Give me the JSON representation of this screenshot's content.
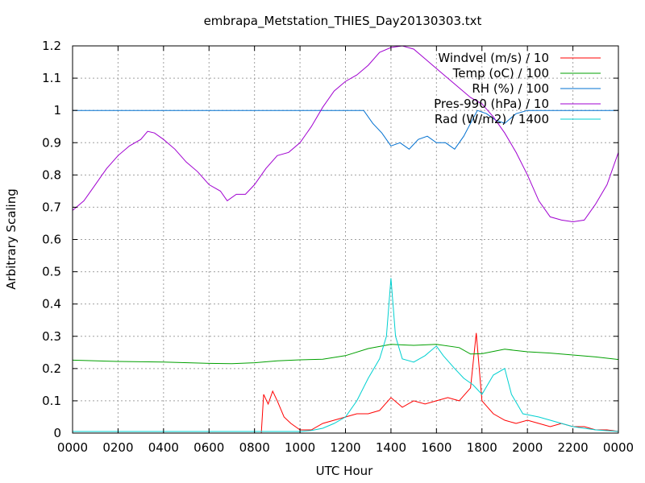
{
  "chart_data": {
    "type": "line",
    "title": "embrapa_Metstation_THIES_Day20130303.txt",
    "xlabel": "UTC Hour",
    "ylabel": "Arbitrary Scaling",
    "xlim": [
      0,
      24
    ],
    "ylim": [
      0,
      1.2
    ],
    "grid": true,
    "legend_position": "top-right",
    "x_ticks": [
      0,
      2,
      4,
      6,
      8,
      10,
      12,
      14,
      16,
      18,
      20,
      22,
      24
    ],
    "x_tick_labels": [
      "0000",
      "0200",
      "0400",
      "0600",
      "0800",
      "1000",
      "1200",
      "1400",
      "1600",
      "1800",
      "2000",
      "2200",
      "0000"
    ],
    "y_ticks": [
      0,
      0.1,
      0.2,
      0.3,
      0.4,
      0.5,
      0.6,
      0.7,
      0.8,
      0.9,
      1,
      1.1,
      1.2
    ],
    "y_tick_labels": [
      "0",
      "0.1",
      "0.2",
      "0.3",
      "0.4",
      "0.5",
      "0.6",
      "0.7",
      "0.8",
      "0.9",
      "1",
      "1.1",
      "1.2"
    ],
    "series": [
      {
        "name": "Windvel (m/s) / 10",
        "color": "#ff0000",
        "points": [
          [
            0,
            0
          ],
          [
            8.3,
            0
          ],
          [
            8.4,
            0.12
          ],
          [
            8.6,
            0.09
          ],
          [
            8.8,
            0.13
          ],
          [
            9.0,
            0.1
          ],
          [
            9.3,
            0.05
          ],
          [
            9.6,
            0.03
          ],
          [
            10.0,
            0.01
          ],
          [
            10.5,
            0.01
          ],
          [
            11.0,
            0.03
          ],
          [
            11.5,
            0.04
          ],
          [
            12.0,
            0.05
          ],
          [
            12.5,
            0.06
          ],
          [
            13.0,
            0.06
          ],
          [
            13.5,
            0.07
          ],
          [
            14.0,
            0.11
          ],
          [
            14.5,
            0.08
          ],
          [
            15.0,
            0.1
          ],
          [
            15.5,
            0.09
          ],
          [
            16.0,
            0.1
          ],
          [
            16.5,
            0.11
          ],
          [
            17.0,
            0.1
          ],
          [
            17.5,
            0.14
          ],
          [
            17.75,
            0.31
          ],
          [
            18.0,
            0.1
          ],
          [
            18.5,
            0.06
          ],
          [
            19.0,
            0.04
          ],
          [
            19.5,
            0.03
          ],
          [
            20.0,
            0.04
          ],
          [
            20.5,
            0.03
          ],
          [
            21.0,
            0.02
          ],
          [
            21.5,
            0.03
          ],
          [
            22.0,
            0.02
          ],
          [
            22.5,
            0.02
          ],
          [
            23.0,
            0.01
          ],
          [
            23.5,
            0.01
          ],
          [
            24,
            0.005
          ]
        ]
      },
      {
        "name": "Temp (oC) / 100",
        "color": "#00a000",
        "points": [
          [
            0,
            0.226
          ],
          [
            2,
            0.222
          ],
          [
            4,
            0.22
          ],
          [
            6,
            0.216
          ],
          [
            7,
            0.215
          ],
          [
            8,
            0.218
          ],
          [
            9,
            0.224
          ],
          [
            10,
            0.227
          ],
          [
            11,
            0.229
          ],
          [
            12,
            0.24
          ],
          [
            13,
            0.262
          ],
          [
            14,
            0.275
          ],
          [
            15,
            0.272
          ],
          [
            16,
            0.275
          ],
          [
            17,
            0.265
          ],
          [
            17.5,
            0.245
          ],
          [
            18,
            0.246
          ],
          [
            19,
            0.26
          ],
          [
            20,
            0.252
          ],
          [
            21,
            0.248
          ],
          [
            22,
            0.242
          ],
          [
            23,
            0.236
          ],
          [
            24,
            0.228
          ]
        ]
      },
      {
        "name": "RH (%) / 100",
        "color": "#0070d0",
        "points": [
          [
            0,
            1
          ],
          [
            12.8,
            1
          ],
          [
            13.2,
            0.96
          ],
          [
            13.6,
            0.93
          ],
          [
            14.0,
            0.89
          ],
          [
            14.4,
            0.9
          ],
          [
            14.8,
            0.88
          ],
          [
            15.2,
            0.91
          ],
          [
            15.6,
            0.92
          ],
          [
            16.0,
            0.9
          ],
          [
            16.4,
            0.9
          ],
          [
            16.8,
            0.88
          ],
          [
            17.2,
            0.92
          ],
          [
            17.5,
            0.96
          ],
          [
            17.8,
            1.0
          ],
          [
            18.2,
            0.99
          ],
          [
            18.6,
            0.97
          ],
          [
            19.0,
            0.96
          ],
          [
            19.5,
            0.99
          ],
          [
            20.0,
            1
          ],
          [
            24,
            1
          ]
        ]
      },
      {
        "name": "Pres-990 (hPa) / 10",
        "color": "#a000d0",
        "points": [
          [
            0,
            0.69
          ],
          [
            0.5,
            0.72
          ],
          [
            1,
            0.77
          ],
          [
            1.5,
            0.82
          ],
          [
            2,
            0.86
          ],
          [
            2.5,
            0.89
          ],
          [
            3,
            0.91
          ],
          [
            3.3,
            0.935
          ],
          [
            3.6,
            0.93
          ],
          [
            4,
            0.91
          ],
          [
            4.5,
            0.88
          ],
          [
            5,
            0.84
          ],
          [
            5.5,
            0.81
          ],
          [
            6,
            0.77
          ],
          [
            6.5,
            0.75
          ],
          [
            6.8,
            0.72
          ],
          [
            7.2,
            0.74
          ],
          [
            7.6,
            0.74
          ],
          [
            8.0,
            0.77
          ],
          [
            8.5,
            0.82
          ],
          [
            9.0,
            0.86
          ],
          [
            9.5,
            0.87
          ],
          [
            10.0,
            0.9
          ],
          [
            10.5,
            0.95
          ],
          [
            11.0,
            1.01
          ],
          [
            11.5,
            1.06
          ],
          [
            12.0,
            1.09
          ],
          [
            12.5,
            1.11
          ],
          [
            13.0,
            1.14
          ],
          [
            13.5,
            1.18
          ],
          [
            14.0,
            1.195
          ],
          [
            14.5,
            1.2
          ],
          [
            15.0,
            1.19
          ],
          [
            15.5,
            1.16
          ],
          [
            16.0,
            1.13
          ],
          [
            16.5,
            1.1
          ],
          [
            17.0,
            1.07
          ],
          [
            17.5,
            1.04
          ],
          [
            18.0,
            1.02
          ],
          [
            18.5,
            0.98
          ],
          [
            19.0,
            0.93
          ],
          [
            19.5,
            0.87
          ],
          [
            20.0,
            0.8
          ],
          [
            20.5,
            0.72
          ],
          [
            21.0,
            0.67
          ],
          [
            21.5,
            0.66
          ],
          [
            22.0,
            0.655
          ],
          [
            22.5,
            0.66
          ],
          [
            23.0,
            0.71
          ],
          [
            23.5,
            0.77
          ],
          [
            24,
            0.87
          ]
        ]
      },
      {
        "name": "Rad (W/m2) / 1400",
        "color": "#00d0d0",
        "points": [
          [
            0,
            0.005
          ],
          [
            10.0,
            0.005
          ],
          [
            10.5,
            0.008
          ],
          [
            11.0,
            0.015
          ],
          [
            11.5,
            0.03
          ],
          [
            12.0,
            0.05
          ],
          [
            12.5,
            0.1
          ],
          [
            13.0,
            0.17
          ],
          [
            13.5,
            0.23
          ],
          [
            13.8,
            0.3
          ],
          [
            14.0,
            0.48
          ],
          [
            14.2,
            0.3
          ],
          [
            14.5,
            0.23
          ],
          [
            15.0,
            0.22
          ],
          [
            15.5,
            0.24
          ],
          [
            16.0,
            0.27
          ],
          [
            16.3,
            0.24
          ],
          [
            16.8,
            0.2
          ],
          [
            17.2,
            0.17
          ],
          [
            17.6,
            0.15
          ],
          [
            18.0,
            0.12
          ],
          [
            18.5,
            0.18
          ],
          [
            19.0,
            0.2
          ],
          [
            19.3,
            0.12
          ],
          [
            19.8,
            0.06
          ],
          [
            20.5,
            0.05
          ],
          [
            21.0,
            0.04
          ],
          [
            21.5,
            0.03
          ],
          [
            22.0,
            0.02
          ],
          [
            23.0,
            0.01
          ],
          [
            24,
            0.005
          ]
        ]
      }
    ]
  }
}
